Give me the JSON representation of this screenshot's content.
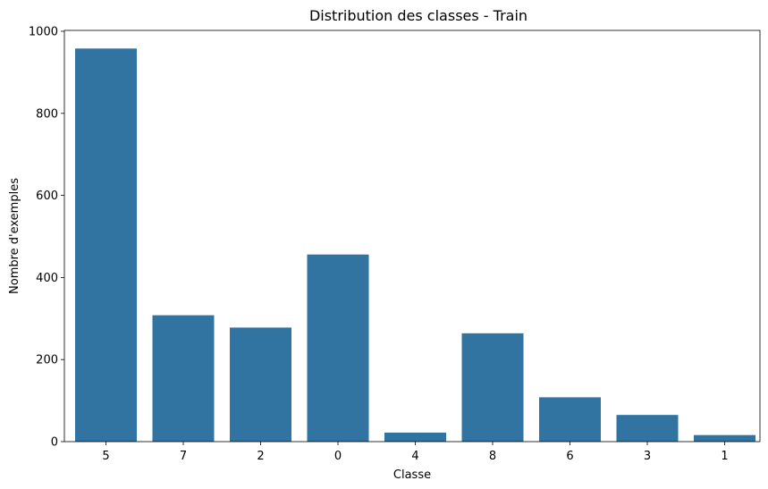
{
  "chart_data": {
    "type": "bar",
    "title": "Distribution des classes - Train",
    "xlabel": "Classe",
    "ylabel": "Nombre d'exemples",
    "categories": [
      "5",
      "7",
      "2",
      "0",
      "4",
      "8",
      "6",
      "3",
      "1"
    ],
    "values": [
      958,
      308,
      278,
      456,
      22,
      264,
      108,
      65,
      16
    ],
    "ylim": [
      0,
      1000
    ],
    "yticks": [
      "0",
      "200",
      "400",
      "600",
      "800",
      "1000"
    ],
    "bar_color": "#3274a1",
    "grid": false,
    "legend": "none"
  }
}
